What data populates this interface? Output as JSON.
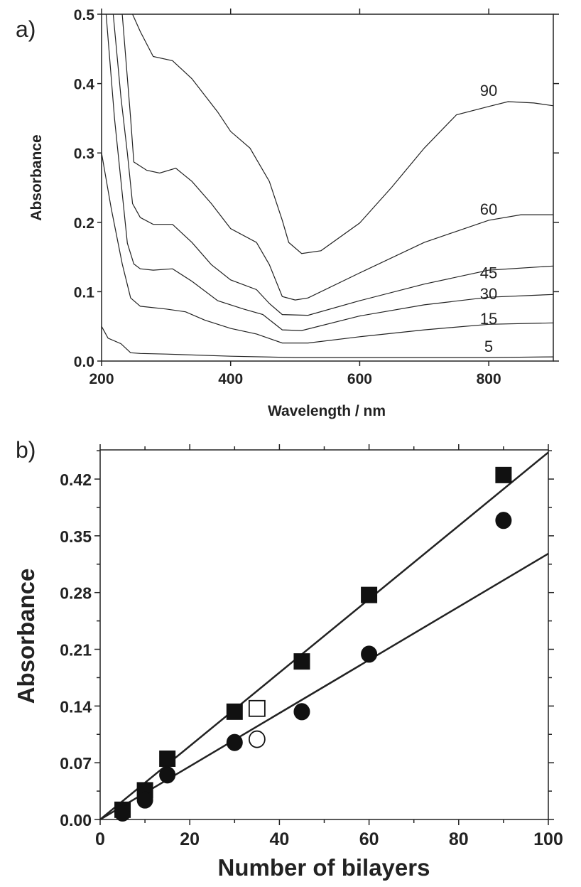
{
  "chart_data": [
    {
      "panel_label": "a)",
      "type": "line",
      "xlabel": "Wavelength / nm",
      "ylabel": "Absorbance",
      "xlim": [
        200,
        900
      ],
      "ylim": [
        0,
        0.5
      ],
      "xticks": [
        "200",
        "400",
        "600",
        "800"
      ],
      "xtick_values": [
        200,
        400,
        600,
        800
      ],
      "yticks": [
        "0.0",
        "0.1",
        "0.2",
        "0.3",
        "0.4",
        "0.5"
      ],
      "ytick_values": [
        0,
        0.1,
        0.2,
        0.3,
        0.4,
        0.5
      ],
      "grid": false,
      "line_color": "#222222",
      "series": [
        {
          "name": "90",
          "x": [
            248,
            260,
            280,
            310,
            340,
            380,
            400,
            430,
            460,
            480,
            490,
            510,
            540,
            600,
            650,
            700,
            750,
            800,
            830,
            870,
            900
          ],
          "y": [
            0.5,
            0.475,
            0.439,
            0.433,
            0.407,
            0.359,
            0.331,
            0.307,
            0.259,
            0.203,
            0.171,
            0.155,
            0.159,
            0.199,
            0.251,
            0.307,
            0.355,
            0.367,
            0.374,
            0.372,
            0.368
          ]
        },
        {
          "name": "60",
          "x": [
            232,
            245,
            250,
            270,
            290,
            315,
            340,
            370,
            400,
            440,
            460,
            480,
            500,
            520,
            600,
            700,
            800,
            850,
            900
          ],
          "y": [
            0.5,
            0.35,
            0.287,
            0.275,
            0.271,
            0.278,
            0.259,
            0.227,
            0.191,
            0.171,
            0.139,
            0.093,
            0.088,
            0.091,
            0.127,
            0.171,
            0.203,
            0.211,
            0.211
          ]
        },
        {
          "name": "45",
          "x": [
            218,
            230,
            240,
            248,
            260,
            280,
            310,
            340,
            370,
            400,
            440,
            460,
            480,
            520,
            600,
            700,
            800,
            900
          ],
          "y": [
            0.5,
            0.38,
            0.3,
            0.227,
            0.207,
            0.197,
            0.197,
            0.171,
            0.139,
            0.117,
            0.103,
            0.083,
            0.067,
            0.066,
            0.087,
            0.111,
            0.131,
            0.137
          ]
        },
        {
          "name": "30",
          "x": [
            207,
            220,
            240,
            250,
            260,
            280,
            310,
            340,
            380,
            420,
            450,
            480,
            510,
            600,
            700,
            800,
            900
          ],
          "y": [
            0.5,
            0.35,
            0.17,
            0.14,
            0.133,
            0.131,
            0.133,
            0.115,
            0.087,
            0.075,
            0.067,
            0.045,
            0.044,
            0.065,
            0.081,
            0.092,
            0.096
          ]
        },
        {
          "name": "15",
          "x": [
            200,
            215,
            232,
            245,
            260,
            300,
            330,
            360,
            400,
            440,
            480,
            520,
            600,
            700,
            800,
            900
          ],
          "y": [
            0.3,
            0.22,
            0.14,
            0.091,
            0.079,
            0.075,
            0.071,
            0.059,
            0.047,
            0.039,
            0.026,
            0.026,
            0.035,
            0.045,
            0.053,
            0.055
          ]
        },
        {
          "name": "5",
          "x": [
            200,
            210,
            230,
            245,
            260,
            300,
            400,
            500,
            600,
            800,
            900
          ],
          "y": [
            0.05,
            0.033,
            0.025,
            0.012,
            0.011,
            0.01,
            0.007,
            0.005,
            0.005,
            0.005,
            0.006
          ]
        }
      ]
    },
    {
      "panel_label": "b)",
      "type": "scatter",
      "xlabel": "Number of bilayers",
      "ylabel": "Absorbance",
      "xlim": [
        0,
        100
      ],
      "ylim": [
        0,
        0.456
      ],
      "xticks": [
        "0",
        "20",
        "40",
        "60",
        "80",
        "100"
      ],
      "xtick_values": [
        0,
        20,
        40,
        60,
        80,
        100
      ],
      "yticks": [
        "0.00",
        "0.07",
        "0.14",
        "0.21",
        "0.28",
        "0.35",
        "0.42"
      ],
      "ytick_values": [
        0,
        0.07,
        0.14,
        0.21,
        0.28,
        0.35,
        0.42
      ],
      "grid": false,
      "series": [
        {
          "marker": "filled-square",
          "x": [
            5,
            10,
            15,
            30,
            45,
            60,
            90
          ],
          "y": [
            0.012,
            0.036,
            0.075,
            0.133,
            0.195,
            0.277,
            0.425
          ],
          "fit": {
            "x": [
              0,
              100
            ],
            "y": [
              0,
              0.453
            ]
          }
        },
        {
          "marker": "filled-circle",
          "x": [
            5,
            10,
            15,
            30,
            45,
            60,
            90
          ],
          "y": [
            0.008,
            0.024,
            0.055,
            0.095,
            0.133,
            0.204,
            0.369
          ],
          "fit": {
            "x": [
              0,
              100
            ],
            "y": [
              0,
              0.328
            ]
          }
        },
        {
          "marker": "open-square",
          "x": [
            35
          ],
          "y": [
            0.137
          ]
        },
        {
          "marker": "open-circle",
          "x": [
            35
          ],
          "y": [
            0.099
          ]
        }
      ]
    }
  ]
}
